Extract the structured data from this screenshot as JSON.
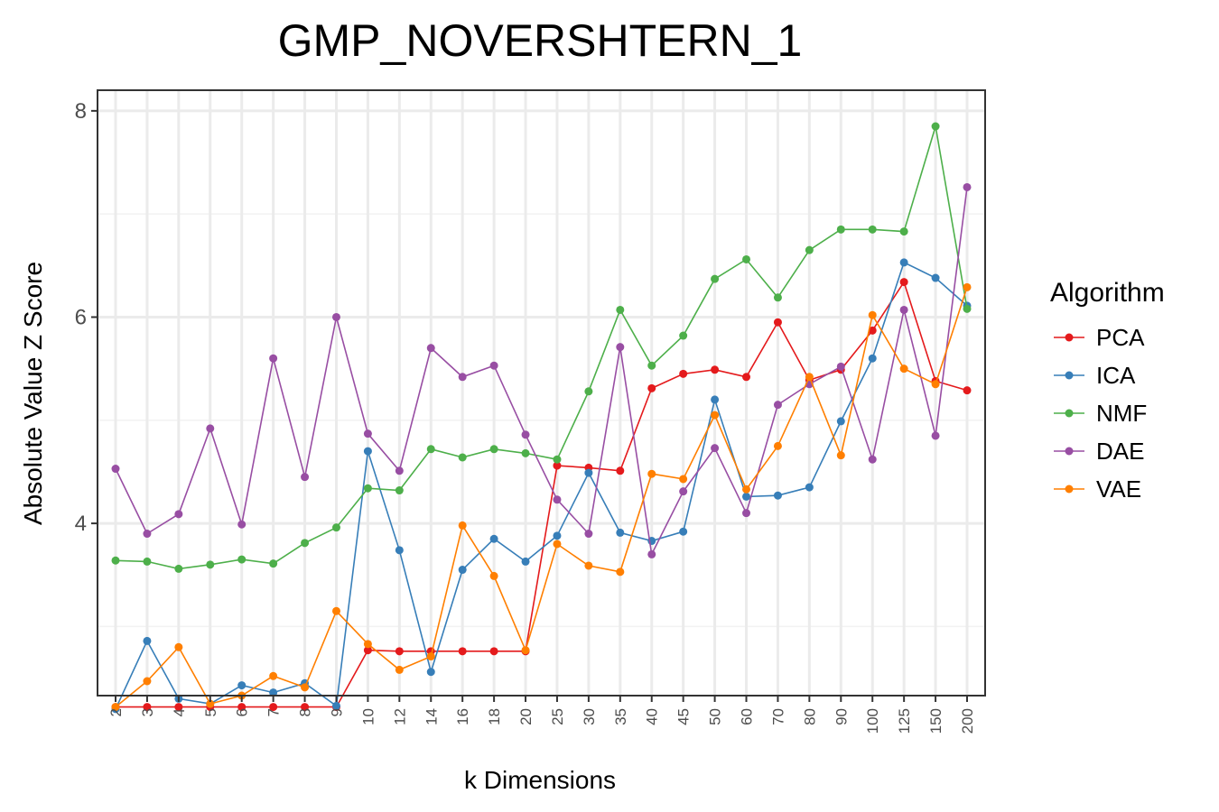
{
  "chart_data": {
    "type": "line",
    "title": "GMP_NOVERSHTERN_1",
    "xlabel": "k Dimensions",
    "ylabel": "Absolute Value Z Score",
    "categories": [
      "2",
      "3",
      "4",
      "5",
      "6",
      "7",
      "8",
      "9",
      "10",
      "12",
      "14",
      "16",
      "18",
      "20",
      "25",
      "30",
      "35",
      "40",
      "45",
      "50",
      "60",
      "70",
      "80",
      "90",
      "100",
      "125",
      "150",
      "200"
    ],
    "ylim": [
      2.33,
      8.2
    ],
    "yticks": [
      "4",
      "6",
      "8"
    ],
    "grid": true,
    "legend": {
      "title": "Algorithm",
      "position": "right"
    },
    "series": [
      {
        "name": "PCA",
        "color": "#e41a1c",
        "values": [
          2.22,
          2.22,
          2.22,
          2.22,
          2.22,
          2.22,
          2.22,
          2.22,
          2.77,
          2.76,
          2.76,
          2.76,
          2.76,
          2.76,
          4.56,
          4.54,
          4.51,
          5.31,
          5.45,
          5.49,
          5.42,
          5.95,
          5.39,
          5.49,
          5.87,
          6.34,
          5.38,
          5.29
        ]
      },
      {
        "name": "ICA",
        "color": "#377eb8",
        "values": [
          2.2,
          2.86,
          2.3,
          2.25,
          2.43,
          2.36,
          2.45,
          2.23,
          4.7,
          3.74,
          2.56,
          3.55,
          3.85,
          3.63,
          3.88,
          4.49,
          3.91,
          3.83,
          3.92,
          5.2,
          4.26,
          4.27,
          4.35,
          4.99,
          5.6,
          6.53,
          6.38,
          6.11
        ]
      },
      {
        "name": "NMF",
        "color": "#4daf4a",
        "values": [
          3.64,
          3.63,
          3.56,
          3.6,
          3.65,
          3.61,
          3.81,
          3.96,
          4.34,
          4.32,
          4.72,
          4.64,
          4.72,
          4.68,
          4.62,
          5.28,
          6.07,
          5.53,
          5.82,
          6.37,
          6.56,
          6.19,
          6.65,
          6.85,
          6.85,
          6.83,
          7.85,
          6.08
        ]
      },
      {
        "name": "DAE",
        "color": "#984ea3",
        "values": [
          4.53,
          3.9,
          4.09,
          4.92,
          3.99,
          5.6,
          4.45,
          6.0,
          4.87,
          4.51,
          5.7,
          5.42,
          5.53,
          4.86,
          4.23,
          3.9,
          5.71,
          3.7,
          4.31,
          4.73,
          4.1,
          5.15,
          5.35,
          5.52,
          4.62,
          6.07,
          4.85,
          7.26
        ]
      },
      {
        "name": "VAE",
        "color": "#ff7f00",
        "values": [
          2.22,
          2.47,
          2.8,
          2.25,
          2.33,
          2.52,
          2.41,
          3.15,
          2.83,
          2.58,
          2.71,
          3.98,
          3.49,
          2.77,
          3.8,
          3.59,
          3.53,
          4.48,
          4.43,
          5.05,
          4.33,
          4.75,
          5.42,
          4.66,
          6.02,
          5.5,
          5.35,
          6.29
        ]
      }
    ]
  }
}
